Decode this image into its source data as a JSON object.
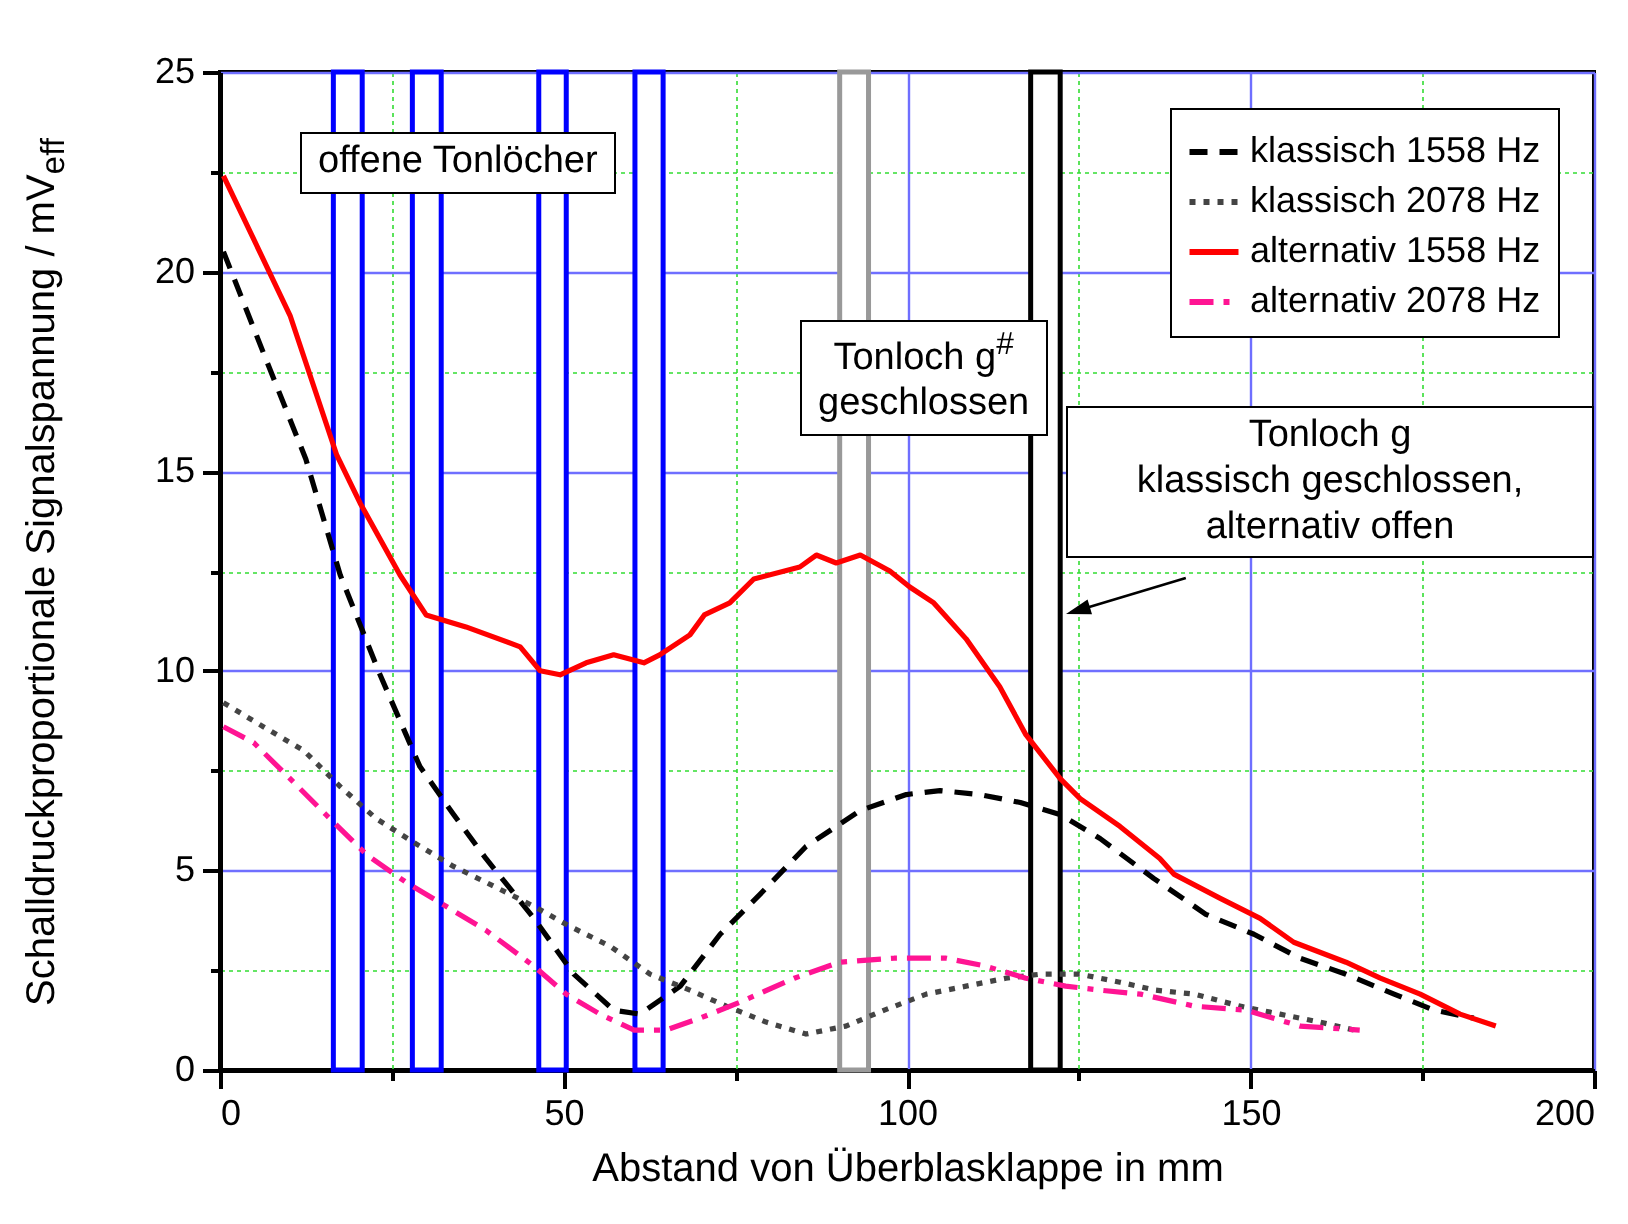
{
  "chart_data": {
    "type": "line",
    "xlabel": "Abstand von Überblasklappe in mm",
    "ylabel": "Schalldruckproportionale Signalspannung / mV$_{eff}$",
    "xlim": [
      0,
      200
    ],
    "ylim": [
      0,
      25
    ],
    "xticks": [
      0,
      {
        "value": 25,
        "label": null
      },
      50,
      {
        "value": 75,
        "label": null
      },
      100,
      {
        "value": 125,
        "label": null
      },
      150,
      {
        "value": 175,
        "label": null
      },
      200
    ],
    "yticks": [
      0,
      {
        "value": 2.5,
        "label": null
      },
      5,
      {
        "value": 7.5,
        "label": null
      },
      10,
      {
        "value": 12.5,
        "label": null
      },
      15,
      {
        "value": 17.5,
        "label": null
      },
      20,
      {
        "value": 22.5,
        "label": null
      },
      25
    ],
    "grid": true,
    "legend": "top right",
    "series": [
      {
        "name": "klassisch 1558 Hz",
        "color": "#000000",
        "line_style": "dashed",
        "x": [
          0.5,
          6.7,
          12.5,
          17.5,
          23.3,
          29.1,
          34,
          38.7,
          45.7,
          51.5,
          57.3,
          61.1,
          67,
          72.8,
          78.6,
          85.3,
          93.2,
          99.9,
          104.8,
          110.6,
          116.5,
          122.3,
          128.1,
          135.9,
          143.5,
          150.5,
          157.2,
          163.9,
          170.9,
          176.7,
          182.5
        ],
        "values": [
          20.5,
          17.8,
          15.3,
          12.4,
          9.9,
          7.6,
          6.4,
          5.3,
          3.8,
          2.4,
          1.5,
          1.4,
          2.1,
          3.4,
          4.4,
          5.6,
          6.5,
          6.9,
          7.0,
          6.9,
          6.7,
          6.4,
          5.8,
          4.8,
          3.9,
          3.4,
          2.8,
          2.4,
          1.9,
          1.5,
          1.3
        ]
      },
      {
        "name": "klassisch 2078 Hz",
        "color": "#444444",
        "line_style": "dotted",
        "x": [
          0.5,
          6.3,
          12.2,
          17.5,
          22.7,
          28.2,
          34,
          39.9,
          45.7,
          50.9,
          56.8,
          62.6,
          68.4,
          73.7,
          79.5,
          85.3,
          91.1,
          96.7,
          102.8,
          108.6,
          114.4,
          119.4,
          125.2,
          131,
          136.2,
          141.8,
          148.5,
          154.3,
          160.1,
          165.1
        ],
        "values": [
          9.2,
          8.6,
          8.0,
          7.1,
          6.3,
          5.7,
          5.1,
          4.6,
          4.1,
          3.6,
          3.1,
          2.4,
          2.0,
          1.6,
          1.2,
          0.9,
          1.1,
          1.5,
          1.9,
          2.1,
          2.3,
          2.4,
          2.4,
          2.2,
          2.0,
          1.9,
          1.6,
          1.4,
          1.2,
          1.0
        ]
      },
      {
        "name": "alternativ 1558 Hz",
        "color": "#ff0000",
        "line_style": "solid",
        "x": [
          0.5,
          10.2,
          17,
          20.4,
          26.2,
          30,
          35.8,
          43.7,
          46.6,
          49.5,
          53.3,
          57.3,
          61.7,
          64,
          68.4,
          70.5,
          74.2,
          77.7,
          84.4,
          86.8,
          89.7,
          93.2,
          97.5,
          100.4,
          103.9,
          108.6,
          113.5,
          117.3,
          122.3,
          125.2,
          131,
          136.8,
          138.9,
          145.6,
          151.4,
          156.3,
          163.9,
          168.9,
          174.7,
          180.5,
          185.7
        ],
        "values": [
          22.4,
          18.9,
          15.4,
          14.2,
          12.4,
          11.4,
          11.1,
          10.6,
          10.0,
          9.9,
          10.2,
          10.4,
          10.2,
          10.4,
          10.9,
          11.4,
          11.7,
          12.3,
          12.6,
          12.9,
          12.7,
          12.9,
          12.5,
          12.1,
          11.7,
          10.8,
          9.6,
          8.4,
          7.3,
          6.8,
          6.1,
          5.3,
          4.9,
          4.3,
          3.8,
          3.2,
          2.7,
          2.3,
          1.9,
          1.4,
          1.1
        ]
      },
      {
        "name": "alternativ 2078 Hz",
        "color": "#ff1493",
        "line_style": "dashdot",
        "x": [
          0.5,
          4.9,
          9.6,
          15.4,
          21.3,
          27.1,
          32.9,
          38.7,
          45.7,
          50.4,
          55.3,
          60.3,
          64.9,
          69.9,
          75.7,
          83.6,
          90.2,
          98.1,
          105.7,
          111.5,
          117.3,
          123.1,
          128.1,
          134,
          141.8,
          149.3,
          157.2,
          165.9
        ],
        "values": [
          8.6,
          8.2,
          7.4,
          6.4,
          5.4,
          4.7,
          4.1,
          3.5,
          2.6,
          1.9,
          1.4,
          1.0,
          1.0,
          1.3,
          1.7,
          2.3,
          2.7,
          2.8,
          2.8,
          2.6,
          2.3,
          2.1,
          2.0,
          1.9,
          1.6,
          1.5,
          1.1,
          1.0
        ]
      }
    ],
    "bands": [
      {
        "axis": "x",
        "from": 16.5,
        "to": 20.7,
        "color": "#0000ff"
      },
      {
        "axis": "x",
        "from": 28,
        "to": 32.2,
        "color": "#0000ff"
      },
      {
        "axis": "x",
        "from": 46.4,
        "to": 50.4,
        "color": "#0000ff"
      },
      {
        "axis": "x",
        "from": 60.4,
        "to": 64.5,
        "color": "#0000ff"
      },
      {
        "axis": "x",
        "from": 90.2,
        "to": 94.4,
        "color": "#999999"
      },
      {
        "axis": "x",
        "from": 118,
        "to": 122.3,
        "color": "#000000"
      }
    ],
    "annotations": [
      "offene Tonlöcher",
      "Tonloch g$^{#}$\ngeschlossen",
      "Tonloch g\nklassisch geschlossen,\nalternativ offen"
    ]
  }
}
